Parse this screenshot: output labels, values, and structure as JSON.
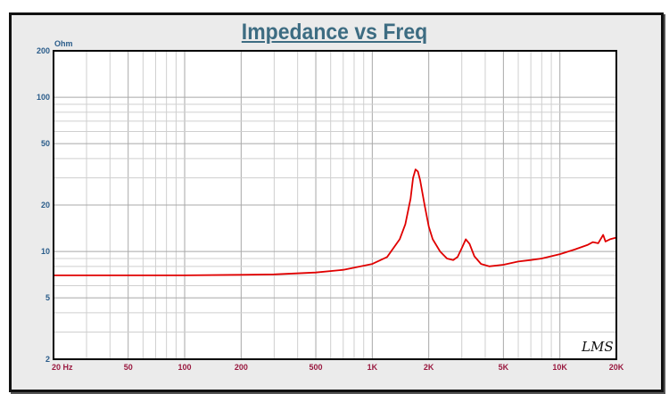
{
  "chart_data": {
    "type": "line",
    "title": "Impedance vs Freq",
    "ylabel": "Ohm",
    "xlabel": "",
    "x_scale": "log",
    "y_scale": "log",
    "xlim": [
      20,
      20000
    ],
    "ylim": [
      2,
      200
    ],
    "grid": true,
    "x_tick_labels": [
      {
        "value": 20,
        "label": "20  Hz"
      },
      {
        "value": 50,
        "label": "50"
      },
      {
        "value": 100,
        "label": "100"
      },
      {
        "value": 200,
        "label": "200"
      },
      {
        "value": 500,
        "label": "500"
      },
      {
        "value": 1000,
        "label": "1K"
      },
      {
        "value": 2000,
        "label": "2K"
      },
      {
        "value": 5000,
        "label": "5K"
      },
      {
        "value": 10000,
        "label": "10K"
      },
      {
        "value": 20000,
        "label": "20K"
      }
    ],
    "y_tick_labels": [
      {
        "value": 2,
        "label": "2"
      },
      {
        "value": 5,
        "label": "5"
      },
      {
        "value": 10,
        "label": "10"
      },
      {
        "value": 20,
        "label": "20"
      },
      {
        "value": 50,
        "label": "50"
      },
      {
        "value": 100,
        "label": "100"
      },
      {
        "value": 200,
        "label": "200"
      }
    ],
    "series": [
      {
        "color": "#e00000",
        "x": [
          20,
          50,
          100,
          200,
          300,
          500,
          700,
          1000,
          1200,
          1400,
          1500,
          1600,
          1650,
          1700,
          1750,
          1800,
          1900,
          2000,
          2100,
          2300,
          2500,
          2700,
          2850,
          3000,
          3150,
          3300,
          3500,
          3800,
          4200,
          5000,
          6000,
          7000,
          8000,
          10000,
          12000,
          14000,
          15000,
          16000,
          17000,
          17500,
          18500,
          20000
        ],
        "y": [
          7.0,
          7.0,
          7.0,
          7.05,
          7.1,
          7.3,
          7.6,
          8.3,
          9.2,
          12,
          15,
          22,
          30,
          34,
          33,
          29,
          20,
          14.5,
          12,
          10,
          9.0,
          8.8,
          9.2,
          10.5,
          12.0,
          11.2,
          9.3,
          8.3,
          8.0,
          8.2,
          8.6,
          8.8,
          9.0,
          9.6,
          10.3,
          11.0,
          11.5,
          11.3,
          12.8,
          11.6,
          12.0,
          12.3
        ]
      }
    ],
    "watermark": "LMS",
    "colors": {
      "title": "#3d6c82",
      "y_labels": "#2a5c8a",
      "x_labels": "#9a1a40",
      "curve": "#e00000",
      "background": "#ebebeb"
    }
  }
}
